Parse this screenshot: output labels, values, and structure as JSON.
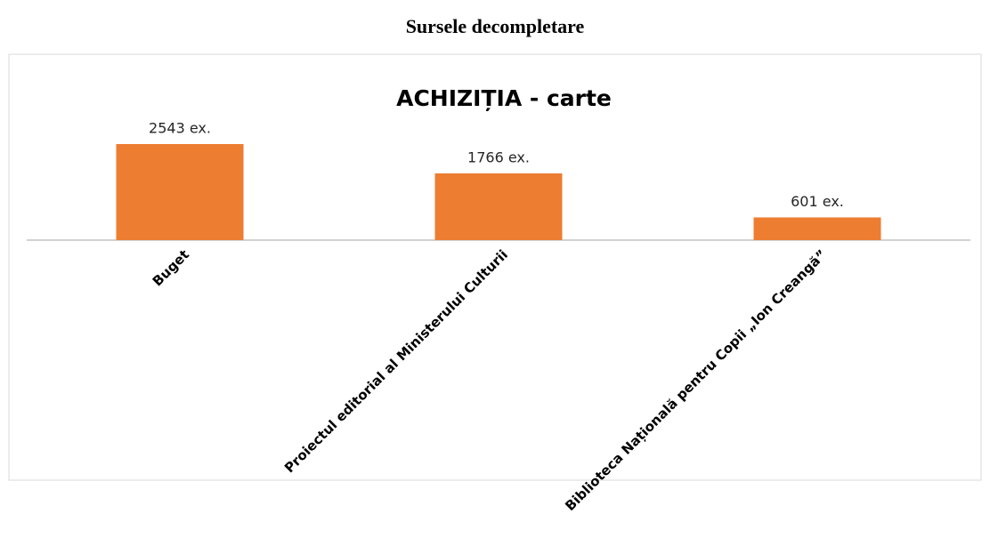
{
  "page_title": "Sursele decompletare",
  "chart_data": {
    "type": "bar",
    "title": "ACHIZIȚIA - carte",
    "categories": [
      "Buget",
      "Proiectul editorial al Ministerului Culturii",
      "Biblioteca Națională pentru Copii „Ion Creangă”"
    ],
    "values": [
      2543,
      1766,
      601
    ],
    "value_labels": [
      "2543 ex.",
      "1766 ex.",
      "601 ex."
    ],
    "color": "#ed7d31"
  }
}
